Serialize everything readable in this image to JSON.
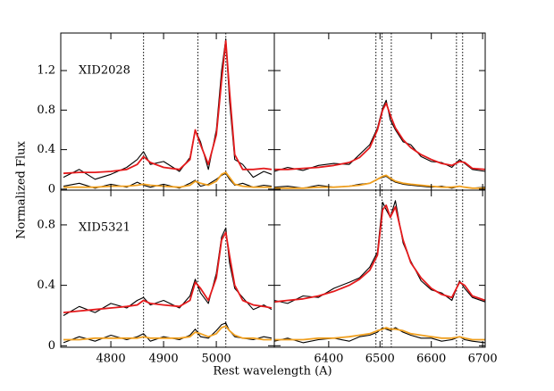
{
  "xlabel": "Rest wavelength (A)",
  "ylabel": "Normalized Flux",
  "chart_data": [
    {
      "type": "line",
      "annotation": "XID2028",
      "x": [
        4710,
        4740,
        4770,
        4800,
        4830,
        4850,
        4862,
        4875,
        4900,
        4930,
        4950,
        4960,
        4970,
        4985,
        5000,
        5010,
        5018,
        5025,
        5035,
        5050,
        5070,
        5090,
        5105
      ],
      "series": [
        {
          "color": "#000000",
          "values": [
            0.12,
            0.2,
            0.1,
            0.15,
            0.22,
            0.3,
            0.38,
            0.25,
            0.28,
            0.18,
            0.32,
            0.6,
            0.48,
            0.2,
            0.6,
            1.2,
            1.52,
            0.9,
            0.3,
            0.25,
            0.12,
            0.18,
            0.15
          ]
        },
        {
          "color": "#e41a1c",
          "values": [
            0.16,
            0.17,
            0.17,
            0.18,
            0.2,
            0.25,
            0.33,
            0.27,
            0.22,
            0.2,
            0.3,
            0.6,
            0.45,
            0.25,
            0.55,
            1.1,
            1.5,
            1.0,
            0.35,
            0.2,
            0.2,
            0.21,
            0.2
          ]
        },
        {
          "color": "#000000",
          "values": [
            0.03,
            0.06,
            0.01,
            0.05,
            0.02,
            0.07,
            0.04,
            0.02,
            0.05,
            0.01,
            0.06,
            0.09,
            0.03,
            0.05,
            0.1,
            0.14,
            0.16,
            0.1,
            0.04,
            0.06,
            0.02,
            0.04,
            0.03
          ]
        },
        {
          "color": "#f0a020",
          "values": [
            0.02,
            0.02,
            0.02,
            0.03,
            0.03,
            0.04,
            0.05,
            0.04,
            0.03,
            0.02,
            0.04,
            0.08,
            0.06,
            0.04,
            0.08,
            0.15,
            0.17,
            0.12,
            0.05,
            0.03,
            0.02,
            0.02,
            0.02
          ]
        }
      ],
      "vlines": [
        4862,
        4965,
        5018
      ],
      "xlim": [
        4705,
        5110
      ],
      "ylim": [
        -0.01,
        1.58
      ],
      "xticks": [
        4800,
        4900,
        5000
      ],
      "yticks": [
        0,
        0.4,
        0.8,
        1.2
      ],
      "xticklabels": false,
      "yticklabels": true
    },
    {
      "type": "line",
      "x": [
        6294,
        6320,
        6350,
        6380,
        6410,
        6440,
        6460,
        6480,
        6495,
        6505,
        6512,
        6520,
        6530,
        6545,
        6560,
        6580,
        6600,
        6620,
        6640,
        6655,
        6665,
        6680,
        6705
      ],
      "series": [
        {
          "color": "#000000",
          "values": [
            0.18,
            0.22,
            0.19,
            0.24,
            0.26,
            0.25,
            0.35,
            0.45,
            0.62,
            0.82,
            0.9,
            0.7,
            0.6,
            0.48,
            0.45,
            0.33,
            0.28,
            0.27,
            0.22,
            0.3,
            0.26,
            0.2,
            0.18
          ]
        },
        {
          "color": "#e41a1c",
          "values": [
            0.2,
            0.2,
            0.21,
            0.22,
            0.24,
            0.27,
            0.32,
            0.42,
            0.6,
            0.8,
            0.87,
            0.75,
            0.62,
            0.5,
            0.42,
            0.35,
            0.3,
            0.26,
            0.24,
            0.28,
            0.27,
            0.21,
            0.2
          ]
        },
        {
          "color": "#000000",
          "values": [
            0.02,
            0.03,
            0.01,
            0.04,
            0.02,
            0.03,
            0.05,
            0.06,
            0.1,
            0.12,
            0.13,
            0.1,
            0.07,
            0.05,
            0.04,
            0.03,
            0.02,
            0.03,
            0.01,
            0.03,
            0.02,
            0.01,
            0.02
          ]
        },
        {
          "color": "#f0a020",
          "values": [
            0.01,
            0.01,
            0.01,
            0.02,
            0.02,
            0.03,
            0.04,
            0.06,
            0.1,
            0.13,
            0.14,
            0.11,
            0.08,
            0.06,
            0.05,
            0.04,
            0.03,
            0.02,
            0.02,
            0.03,
            0.02,
            0.01,
            0.01
          ]
        }
      ],
      "vlines": [
        6492,
        6504,
        6522,
        6649,
        6661
      ],
      "xlim": [
        6294,
        6705
      ],
      "ylim": [
        -0.01,
        1.58
      ],
      "xticks": [
        6400,
        6500,
        6600,
        6700
      ],
      "yticks": [
        0,
        0.4,
        0.8,
        1.2
      ],
      "xticklabels": false,
      "yticklabels": false
    },
    {
      "type": "line",
      "annotation": "XID5321",
      "x": [
        4710,
        4740,
        4770,
        4800,
        4830,
        4850,
        4862,
        4875,
        4900,
        4930,
        4950,
        4960,
        4970,
        4985,
        5000,
        5010,
        5018,
        5025,
        5035,
        5050,
        5070,
        5090,
        5105
      ],
      "series": [
        {
          "color": "#000000",
          "values": [
            0.2,
            0.26,
            0.22,
            0.28,
            0.25,
            0.3,
            0.32,
            0.27,
            0.3,
            0.25,
            0.33,
            0.44,
            0.35,
            0.28,
            0.48,
            0.72,
            0.78,
            0.55,
            0.38,
            0.32,
            0.24,
            0.27,
            0.24
          ]
        },
        {
          "color": "#e41a1c",
          "values": [
            0.22,
            0.23,
            0.24,
            0.25,
            0.26,
            0.27,
            0.3,
            0.28,
            0.27,
            0.26,
            0.3,
            0.42,
            0.38,
            0.3,
            0.45,
            0.7,
            0.75,
            0.6,
            0.4,
            0.3,
            0.27,
            0.26,
            0.25
          ]
        },
        {
          "color": "#000000",
          "values": [
            0.02,
            0.06,
            0.03,
            0.07,
            0.04,
            0.06,
            0.08,
            0.03,
            0.06,
            0.04,
            0.07,
            0.11,
            0.06,
            0.05,
            0.1,
            0.14,
            0.15,
            0.1,
            0.06,
            0.05,
            0.04,
            0.06,
            0.05
          ]
        },
        {
          "color": "#f0a020",
          "values": [
            0.04,
            0.04,
            0.05,
            0.05,
            0.05,
            0.05,
            0.06,
            0.05,
            0.05,
            0.05,
            0.06,
            0.09,
            0.08,
            0.06,
            0.08,
            0.12,
            0.13,
            0.1,
            0.07,
            0.05,
            0.05,
            0.04,
            0.04
          ]
        }
      ],
      "vlines": [
        4862,
        4965,
        5018
      ],
      "xlim": [
        4705,
        5110
      ],
      "ylim": [
        -0.01,
        1.03
      ],
      "xticks": [
        4800,
        4900,
        5000
      ],
      "yticks": [
        0,
        0.4,
        0.8
      ],
      "xticklabels": true,
      "yticklabels": true
    },
    {
      "type": "line",
      "x": [
        6294,
        6320,
        6350,
        6380,
        6410,
        6440,
        6460,
        6480,
        6495,
        6505,
        6512,
        6520,
        6530,
        6545,
        6560,
        6580,
        6600,
        6620,
        6640,
        6655,
        6665,
        6680,
        6705
      ],
      "series": [
        {
          "color": "#000000",
          "values": [
            0.3,
            0.28,
            0.33,
            0.32,
            0.38,
            0.42,
            0.45,
            0.52,
            0.62,
            0.95,
            0.9,
            0.85,
            0.96,
            0.68,
            0.56,
            0.43,
            0.37,
            0.35,
            0.3,
            0.43,
            0.38,
            0.32,
            0.29
          ]
        },
        {
          "color": "#e41a1c",
          "values": [
            0.29,
            0.3,
            0.31,
            0.33,
            0.36,
            0.4,
            0.44,
            0.5,
            0.6,
            0.9,
            0.93,
            0.85,
            0.92,
            0.7,
            0.55,
            0.45,
            0.38,
            0.34,
            0.32,
            0.42,
            0.4,
            0.33,
            0.3
          ]
        },
        {
          "color": "#000000",
          "values": [
            0.03,
            0.05,
            0.02,
            0.04,
            0.05,
            0.03,
            0.06,
            0.07,
            0.09,
            0.12,
            0.11,
            0.1,
            0.12,
            0.09,
            0.07,
            0.05,
            0.05,
            0.03,
            0.04,
            0.06,
            0.04,
            0.03,
            0.02
          ]
        },
        {
          "color": "#f0a020",
          "values": [
            0.04,
            0.04,
            0.04,
            0.05,
            0.05,
            0.06,
            0.07,
            0.08,
            0.1,
            0.11,
            0.12,
            0.11,
            0.11,
            0.1,
            0.08,
            0.07,
            0.06,
            0.05,
            0.05,
            0.06,
            0.05,
            0.04,
            0.04
          ]
        }
      ],
      "vlines": [
        6492,
        6504,
        6522,
        6649,
        6661
      ],
      "xlim": [
        6294,
        6705
      ],
      "ylim": [
        -0.01,
        1.03
      ],
      "xticks": [
        6400,
        6500,
        6600,
        6700
      ],
      "yticks": [
        0,
        0.4,
        0.8
      ],
      "xticklabels": true,
      "yticklabels": false
    }
  ]
}
